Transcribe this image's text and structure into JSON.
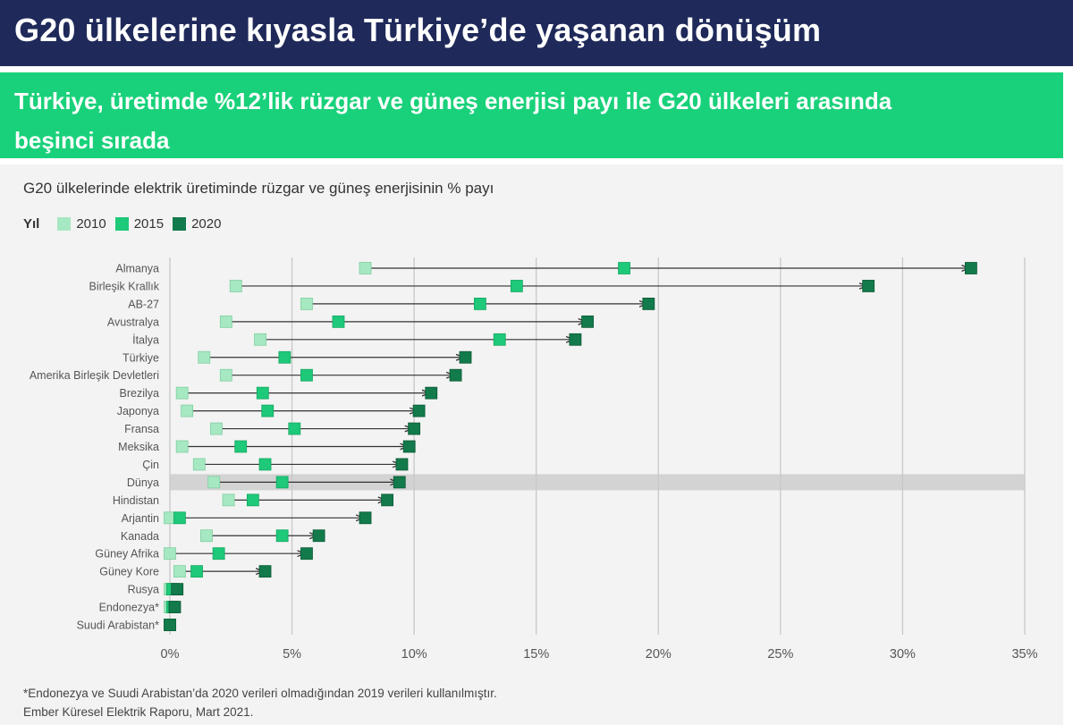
{
  "header": {
    "title": "G20 ülkelerine kıyasla Türkiye’de yaşanan dönüşüm",
    "subtitle_line1": "Türkiye, üretimde %12’lik rüzgar ve güneş enerjisi payı ile G20 ülkeleri arasında",
    "subtitle_line2": "beşinci sırada"
  },
  "chart_data": {
    "type": "dot-arrow",
    "title": "G20 ülkelerinde elektrik üretiminde rüzgar ve güneş enerjisinin % payı",
    "legend": {
      "title": "Yıl",
      "items": [
        {
          "label": "2010",
          "color": "#a6e8c2"
        },
        {
          "label": "2015",
          "color": "#1ec979"
        },
        {
          "label": "2020",
          "color": "#127a4b"
        }
      ]
    },
    "xlim": [
      0,
      35
    ],
    "xticks": [
      {
        "value": 0,
        "label": "0%"
      },
      {
        "value": 5,
        "label": "5%"
      },
      {
        "value": 10,
        "label": "10%"
      },
      {
        "value": 15,
        "label": "15%"
      },
      {
        "value": 20,
        "label": "20%"
      },
      {
        "value": 25,
        "label": "25%"
      },
      {
        "value": 30,
        "label": "30%"
      },
      {
        "value": 35,
        "label": "35%"
      }
    ],
    "highlight": "Dünya",
    "rows": [
      {
        "country": "Almanya",
        "v2010": 8.0,
        "v2015": 18.6,
        "v2020": 32.8
      },
      {
        "country": "Birleşik Krallık",
        "v2010": 2.7,
        "v2015": 14.2,
        "v2020": 28.6
      },
      {
        "country": "AB-27",
        "v2010": 5.6,
        "v2015": 12.7,
        "v2020": 19.6
      },
      {
        "country": "Avustralya",
        "v2010": 2.3,
        "v2015": 6.9,
        "v2020": 17.1
      },
      {
        "country": "İtalya",
        "v2010": 3.7,
        "v2015": 13.5,
        "v2020": 16.6
      },
      {
        "country": "Türkiye",
        "v2010": 1.4,
        "v2015": 4.7,
        "v2020": 12.1
      },
      {
        "country": "Amerika Birleşik Devletleri",
        "v2010": 2.3,
        "v2015": 5.6,
        "v2020": 11.7
      },
      {
        "country": "Brezilya",
        "v2010": 0.5,
        "v2015": 3.8,
        "v2020": 10.7
      },
      {
        "country": "Japonya",
        "v2010": 0.7,
        "v2015": 4.0,
        "v2020": 10.2
      },
      {
        "country": "Fransa",
        "v2010": 1.9,
        "v2015": 5.1,
        "v2020": 10.0
      },
      {
        "country": "Meksika",
        "v2010": 0.5,
        "v2015": 2.9,
        "v2020": 9.8
      },
      {
        "country": "Çin",
        "v2010": 1.2,
        "v2015": 3.9,
        "v2020": 9.5
      },
      {
        "country": "Dünya",
        "v2010": 1.8,
        "v2015": 4.6,
        "v2020": 9.4
      },
      {
        "country": "Hindistan",
        "v2010": 2.4,
        "v2015": 3.4,
        "v2020": 8.9
      },
      {
        "country": "Arjantin",
        "v2010": 0.0,
        "v2015": 0.4,
        "v2020": 8.0
      },
      {
        "country": "Kanada",
        "v2010": 1.5,
        "v2015": 4.6,
        "v2020": 6.1
      },
      {
        "country": "Güney Afrika",
        "v2010": 0.0,
        "v2015": 2.0,
        "v2020": 5.6
      },
      {
        "country": "Güney Kore",
        "v2010": 0.4,
        "v2015": 1.1,
        "v2020": 3.9
      },
      {
        "country": "Rusya",
        "v2010": 0.0,
        "v2015": 0.1,
        "v2020": 0.3
      },
      {
        "country": "Endonezya*",
        "v2010": 0.0,
        "v2015": 0.1,
        "v2020": 0.2
      },
      {
        "country": "Suudi Arabistan*",
        "v2010": 0.0,
        "v2015": 0.0,
        "v2020": 0.0
      }
    ]
  },
  "footnote": {
    "line1": "*Endonezya ve Suudi Arabistan’da 2020 verileri olmadığından 2019 verileri kullanılmıştır.",
    "line2": "Ember Küresel Elektrik Raporu, Mart 2021."
  }
}
